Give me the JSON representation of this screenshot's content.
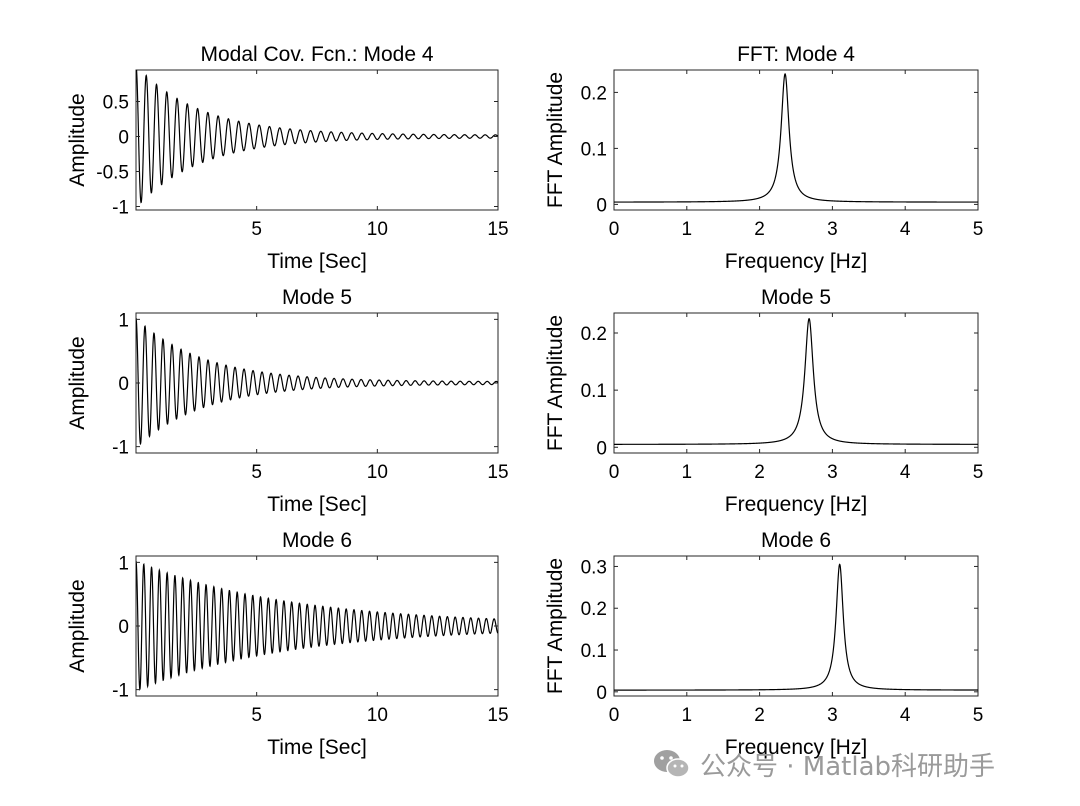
{
  "figure": {
    "watermark_text": "公众号 · Matlab科研助手"
  },
  "chart_data": [
    {
      "type": "line",
      "id": "cov-mode4",
      "title": "Modal Cov. Fcn.: Mode 4",
      "xlabel": "Time [Sec]",
      "ylabel": "Amplitude",
      "xlim": [
        0,
        15
      ],
      "ylim": [
        -1.05,
        0.95
      ],
      "xticks": [
        5,
        10,
        15
      ],
      "yticks": [
        -1,
        -0.5,
        0,
        0.5
      ],
      "grid": false,
      "signal": {
        "kind": "damped_cosine",
        "frequency_hz": 2.35,
        "decay_per_sec": 0.38,
        "amplitude": 1.0,
        "floor": 0.02
      }
    },
    {
      "type": "line",
      "id": "fft-mode4",
      "title": "FFT: Mode 4",
      "xlabel": "Frequency [Hz]",
      "ylabel": "FFT Amplitude",
      "xlim": [
        0,
        5
      ],
      "ylim": [
        -0.01,
        0.24
      ],
      "xticks": [
        0,
        1,
        2,
        3,
        4,
        5
      ],
      "yticks": [
        0,
        0.1,
        0.2
      ],
      "grid": false,
      "signal": {
        "kind": "resonance",
        "peak_hz": 2.35,
        "peak_value": 0.233,
        "half_width": 0.065,
        "baseline": 0.004
      }
    },
    {
      "type": "line",
      "id": "cov-mode5",
      "title": "Mode 5",
      "xlabel": "Time [Sec]",
      "ylabel": "Amplitude",
      "xlim": [
        0,
        15
      ],
      "ylim": [
        -1.1,
        1.1
      ],
      "xticks": [
        5,
        10,
        15
      ],
      "yticks": [
        -1,
        0,
        1
      ],
      "grid": false,
      "signal": {
        "kind": "damped_cosine",
        "frequency_hz": 2.68,
        "decay_per_sec": 0.36,
        "amplitude": 1.0,
        "floor": 0.02
      }
    },
    {
      "type": "line",
      "id": "fft-mode5",
      "title": "Mode 5",
      "xlabel": "Frequency [Hz]",
      "ylabel": "FFT Amplitude",
      "xlim": [
        0,
        5
      ],
      "ylim": [
        -0.01,
        0.235
      ],
      "xticks": [
        0,
        1,
        2,
        3,
        4,
        5
      ],
      "yticks": [
        0,
        0.1,
        0.2
      ],
      "grid": false,
      "signal": {
        "kind": "resonance",
        "peak_hz": 2.68,
        "peak_value": 0.225,
        "half_width": 0.07,
        "baseline": 0.005
      }
    },
    {
      "type": "line",
      "id": "cov-mode6",
      "title": "Mode 6",
      "xlabel": "Time [Sec]",
      "ylabel": "Amplitude",
      "xlim": [
        0,
        15
      ],
      "ylim": [
        -1.1,
        1.1
      ],
      "xticks": [
        5,
        10,
        15
      ],
      "yticks": [
        -1,
        0,
        1
      ],
      "grid": false,
      "signal": {
        "kind": "damped_cosine",
        "frequency_hz": 3.1,
        "decay_per_sec": 0.16,
        "amplitude": 1.0,
        "floor": 0.02
      }
    },
    {
      "type": "line",
      "id": "fft-mode6",
      "title": "Mode 6",
      "xlabel": "Frequency [Hz]",
      "ylabel": "FFT Amplitude",
      "xlim": [
        0,
        5
      ],
      "ylim": [
        -0.01,
        0.325
      ],
      "xticks": [
        0,
        1,
        2,
        3,
        4,
        5
      ],
      "yticks": [
        0,
        0.1,
        0.2,
        0.3
      ],
      "grid": false,
      "signal": {
        "kind": "resonance",
        "peak_hz": 3.1,
        "peak_value": 0.305,
        "half_width": 0.06,
        "baseline": 0.004
      }
    }
  ]
}
